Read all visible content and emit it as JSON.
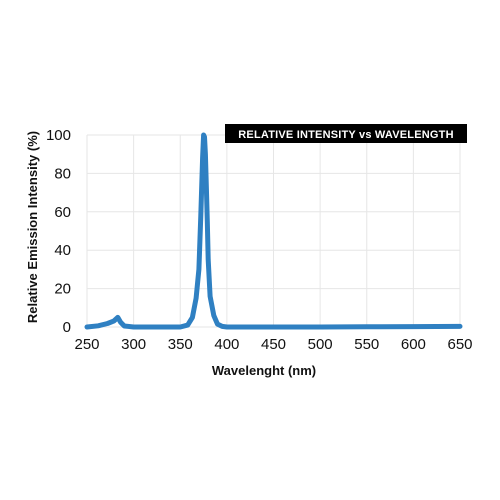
{
  "chart_data": {
    "type": "line",
    "title": "RELATIVE INTENSITY vs WAVELENGTH",
    "xlabel": "Wavelenght (nm)",
    "ylabel": "Relative Emission Intensity (%)",
    "xlim": [
      250,
      650
    ],
    "ylim": [
      0,
      100
    ],
    "xticks": [
      250,
      300,
      350,
      400,
      450,
      500,
      550,
      600,
      650
    ],
    "yticks": [
      0,
      20,
      40,
      60,
      80,
      100
    ],
    "grid": true,
    "legend": "none",
    "colors": {
      "line": "#2f80c2",
      "banner_bg": "#000000",
      "grid": "#e6e6e6"
    },
    "series": [
      {
        "x": [
          250,
          262,
          272,
          279,
          283,
          286,
          290,
          300,
          320,
          350,
          358,
          363,
          367,
          370,
          372,
          374,
          375,
          376,
          377,
          378,
          379,
          380,
          382,
          386,
          390,
          395,
          400,
          450,
          500,
          550,
          600,
          650
        ],
        "y": [
          0,
          0.6,
          1.8,
          3.2,
          5,
          2.5,
          0.5,
          0,
          0,
          0,
          1,
          5,
          15,
          30,
          58,
          88,
          100,
          99,
          90,
          72,
          55,
          35,
          16,
          6,
          1.5,
          0.3,
          0,
          0,
          0,
          0.1,
          0.2,
          0.3
        ]
      }
    ]
  }
}
